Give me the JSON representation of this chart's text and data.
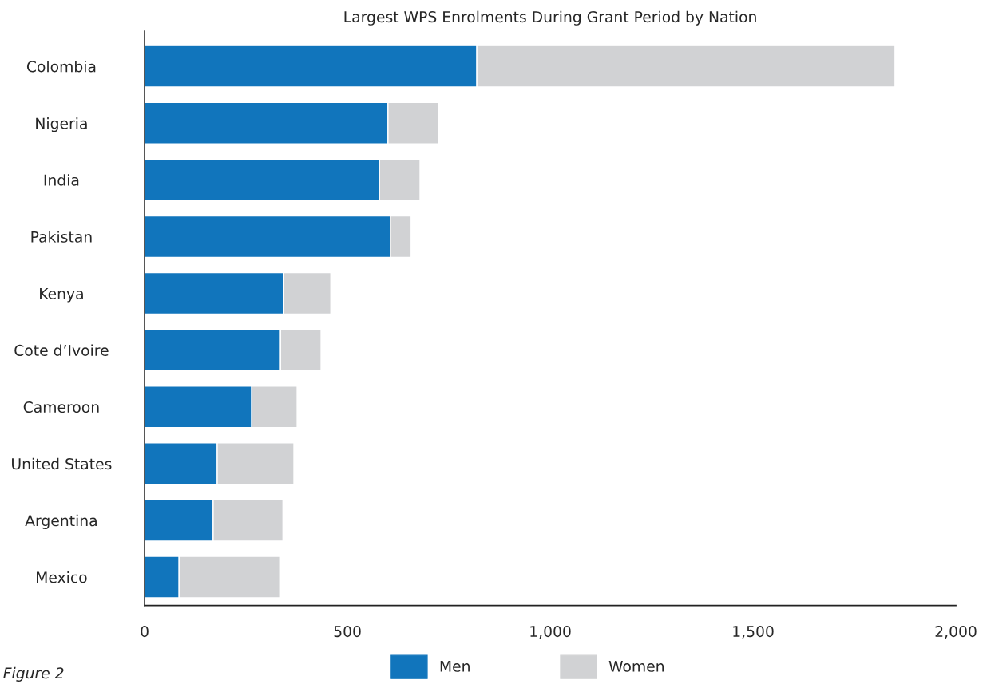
{
  "chart_data": {
    "type": "bar",
    "orientation": "horizontal",
    "stacked": true,
    "title": "Largest WPS Enrolments During Grant Period by Nation",
    "categories": [
      "Colombia",
      "Nigeria",
      "India",
      "Pakistan",
      "Kenya",
      "Cote d’Ivoire",
      "Cameroon",
      "United States",
      "Argentina",
      "Mexico"
    ],
    "series": [
      {
        "name": "Men",
        "color": "#1175bc",
        "values": [
          819,
          600,
          579,
          606,
          343,
          335,
          264,
          179,
          169,
          85
        ]
      },
      {
        "name": "Women",
        "color": "#d1d2d4",
        "values": [
          1031,
          124,
          100,
          51,
          116,
          100,
          112,
          189,
          172,
          250
        ]
      }
    ],
    "xlim": [
      0,
      2000
    ],
    "xticks": [
      0,
      500,
      {
        "value": 1000,
        "label": "1,000"
      },
      {
        "value": 1500,
        "label": "1,500"
      },
      {
        "value": 2000,
        "label": "2,000"
      }
    ],
    "grid": false,
    "legend": "bottom",
    "annotations": [
      "Figure 2"
    ]
  }
}
